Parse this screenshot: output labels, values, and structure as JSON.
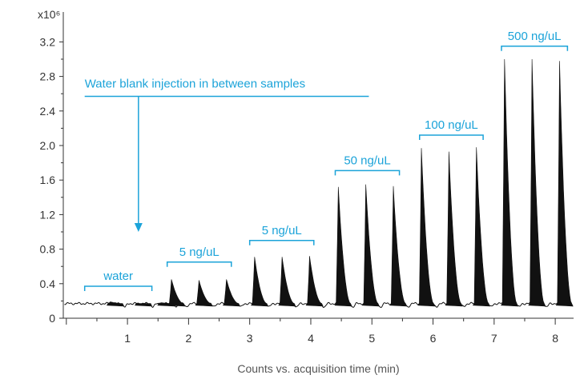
{
  "chart_data": {
    "type": "line",
    "title": "",
    "xlabel": "Counts vs. acquisition time (min)",
    "ylabel": "",
    "y_multiplier_label": "x10⁶",
    "xlim": [
      -0.05,
      8.3
    ],
    "ylim": [
      0,
      3.5
    ],
    "x_ticks": [
      1,
      2,
      3,
      4,
      5,
      6,
      7,
      8
    ],
    "y_ticks": [
      0,
      0.4,
      0.8,
      1.2,
      1.6,
      2.0,
      2.4,
      2.8,
      3.2
    ],
    "y_tick_labels": [
      "0",
      "0.4",
      "0.8",
      "1.2",
      "1.6",
      "2.0",
      "2.4",
      "2.8",
      "3.2"
    ],
    "grid": false,
    "baseline": 0.17,
    "colors": {
      "peak_fill": "#111111",
      "trace": "#111111",
      "annotation": "#1ba3d9",
      "axis": "#333333"
    },
    "peaks": [
      {
        "x": 0.72,
        "y": 0.19
      },
      {
        "x": 1.18,
        "y": 0.17
      },
      {
        "x": 1.55,
        "y": 0.18
      },
      {
        "x": 1.72,
        "y": 0.45
      },
      {
        "x": 2.17,
        "y": 0.44
      },
      {
        "x": 2.62,
        "y": 0.45
      },
      {
        "x": 3.08,
        "y": 0.71
      },
      {
        "x": 3.53,
        "y": 0.71
      },
      {
        "x": 3.98,
        "y": 0.72
      },
      {
        "x": 4.45,
        "y": 1.52
      },
      {
        "x": 4.9,
        "y": 1.55
      },
      {
        "x": 5.35,
        "y": 1.53
      },
      {
        "x": 5.81,
        "y": 1.97
      },
      {
        "x": 6.26,
        "y": 1.93
      },
      {
        "x": 6.71,
        "y": 1.98
      },
      {
        "x": 7.17,
        "y": 3.0
      },
      {
        "x": 7.62,
        "y": 3.0
      },
      {
        "x": 8.07,
        "y": 2.98
      }
    ],
    "groups": [
      {
        "label": "water",
        "x_start": 0.3,
        "x_end": 1.4,
        "y": 0.37
      },
      {
        "label": "5 ng/uL",
        "x_start": 1.65,
        "x_end": 2.7,
        "y": 0.65
      },
      {
        "label": "5 ng/uL",
        "x_start": 3.0,
        "x_end": 4.05,
        "y": 0.9
      },
      {
        "label": "50 ng/uL",
        "x_start": 4.4,
        "x_end": 5.45,
        "y": 1.71
      },
      {
        "label": "100 ng/uL",
        "x_start": 5.78,
        "x_end": 6.82,
        "y": 2.12
      },
      {
        "label": "500 ng/uL",
        "x_start": 7.12,
        "x_end": 8.2,
        "y": 3.15
      }
    ],
    "annotation": {
      "text": "Water blank injection in between samples",
      "line_x_start": 0.3,
      "line_x_end": 4.95,
      "line_y": 2.57,
      "arrow_x": 1.18,
      "arrow_y_end": 1.0
    }
  }
}
